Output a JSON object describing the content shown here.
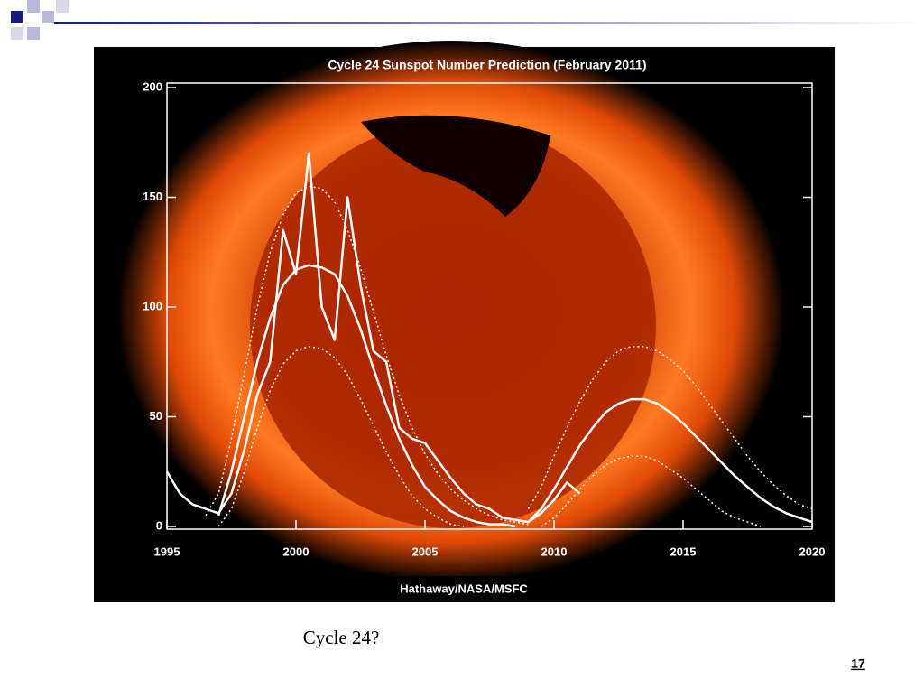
{
  "chart_data": {
    "type": "line",
    "title": "Cycle 24 Sunspot Number Prediction (February 2011)",
    "credit": "Hathaway/NASA/MSFC",
    "x": [
      1995,
      1995.5,
      1996,
      1996.5,
      1997,
      1997.5,
      1998,
      1998.5,
      1999,
      1999.5,
      2000,
      2000.5,
      2001,
      2001.5,
      2002,
      2002.5,
      2003,
      2003.5,
      2004,
      2004.5,
      2005,
      2005.5,
      2006,
      2006.5,
      2007,
      2007.5,
      2008,
      2008.5,
      2009,
      2009.5,
      2010,
      2010.5,
      2011,
      2011.5,
      2012,
      2012.5,
      2013,
      2013.5,
      2014,
      2014.5,
      2015,
      2015.5,
      2016,
      2016.5,
      2017,
      2017.5,
      2018,
      2018.5,
      2019,
      2019.5,
      2020
    ],
    "series": [
      {
        "color": "#ffffff",
        "style": "solid",
        "width": 2.5,
        "values": [
          25,
          15,
          10,
          8,
          6,
          15,
          35,
          60,
          75,
          135,
          115,
          170,
          100,
          85,
          150,
          110,
          80,
          75,
          45,
          40,
          38,
          30,
          22,
          15,
          10,
          8,
          4,
          3,
          2,
          6,
          12,
          20,
          15,
          null,
          null,
          null,
          null,
          null,
          null,
          null,
          null,
          null,
          null,
          null,
          null,
          null,
          null,
          null,
          null,
          null,
          null
        ]
      },
      {
        "color": "#ffffff",
        "style": "solid",
        "width": 2.5,
        "values": [
          null,
          null,
          null,
          null,
          5,
          25,
          50,
          75,
          95,
          110,
          117,
          119,
          118,
          115,
          105,
          90,
          72,
          55,
          40,
          28,
          18,
          12,
          7,
          4,
          2,
          1,
          1,
          0,
          null,
          null,
          null,
          null,
          null,
          null,
          null,
          null,
          null,
          null,
          null,
          null,
          null,
          null,
          null,
          null,
          null,
          null,
          null,
          null,
          null,
          null,
          null
        ]
      },
      {
        "color": "#ffffff",
        "style": "dotted",
        "width": 1.5,
        "values": [
          null,
          null,
          null,
          5,
          15,
          40,
          70,
          100,
          125,
          142,
          152,
          155,
          154,
          148,
          135,
          118,
          98,
          78,
          60,
          45,
          33,
          24,
          17,
          12,
          8,
          5,
          3,
          2,
          1,
          null,
          null,
          null,
          null,
          null,
          null,
          null,
          null,
          null,
          null,
          null,
          null,
          null,
          null,
          null,
          null,
          null,
          null,
          null,
          null,
          null,
          null
        ]
      },
      {
        "color": "#ffffff",
        "style": "dotted",
        "width": 1.5,
        "values": [
          null,
          null,
          null,
          null,
          0,
          8,
          25,
          45,
          62,
          74,
          80,
          82,
          81,
          77,
          69,
          58,
          46,
          34,
          23,
          14,
          8,
          4,
          1,
          0,
          null,
          null,
          null,
          null,
          null,
          null,
          null,
          null,
          null,
          null,
          null,
          null,
          null,
          null,
          null,
          null,
          null,
          null,
          null,
          null,
          null,
          null,
          null,
          null,
          null,
          null,
          null
        ]
      },
      {
        "color": "#ffffff",
        "style": "solid",
        "width": 2.5,
        "values": [
          null,
          null,
          null,
          null,
          null,
          null,
          null,
          null,
          null,
          null,
          null,
          null,
          null,
          null,
          null,
          null,
          null,
          null,
          null,
          null,
          null,
          null,
          null,
          null,
          null,
          null,
          null,
          null,
          2,
          8,
          17,
          27,
          37,
          45,
          52,
          56,
          58,
          58,
          56,
          52,
          47,
          41,
          35,
          29,
          23,
          18,
          13,
          9,
          6,
          4,
          2
        ]
      },
      {
        "color": "#ffffff",
        "style": "dotted",
        "width": 1.5,
        "values": [
          null,
          null,
          null,
          null,
          null,
          null,
          null,
          null,
          null,
          null,
          null,
          null,
          null,
          null,
          null,
          null,
          null,
          null,
          null,
          null,
          null,
          null,
          null,
          null,
          null,
          null,
          null,
          null,
          8,
          18,
          32,
          45,
          57,
          67,
          75,
          80,
          82,
          82,
          80,
          76,
          71,
          64,
          56,
          48,
          40,
          32,
          25,
          19,
          14,
          10,
          8
        ]
      },
      {
        "color": "#ffffff",
        "style": "dotted",
        "width": 1.5,
        "values": [
          null,
          null,
          null,
          null,
          null,
          null,
          null,
          null,
          null,
          null,
          null,
          null,
          null,
          null,
          null,
          null,
          null,
          null,
          null,
          null,
          null,
          null,
          null,
          null,
          null,
          null,
          null,
          null,
          null,
          0,
          4,
          10,
          17,
          23,
          28,
          31,
          32,
          32,
          30,
          26,
          22,
          17,
          12,
          7,
          4,
          2,
          0,
          null,
          null,
          null,
          null
        ]
      }
    ],
    "xlim": [
      1995,
      2020
    ],
    "xticks": [
      1995,
      2000,
      2005,
      2010,
      2015,
      2020
    ],
    "ylim": [
      0,
      200
    ],
    "yticks": [
      0,
      50,
      100,
      150,
      200
    ]
  },
  "slide": {
    "caption": "Cycle 24?",
    "page_number": "17"
  }
}
